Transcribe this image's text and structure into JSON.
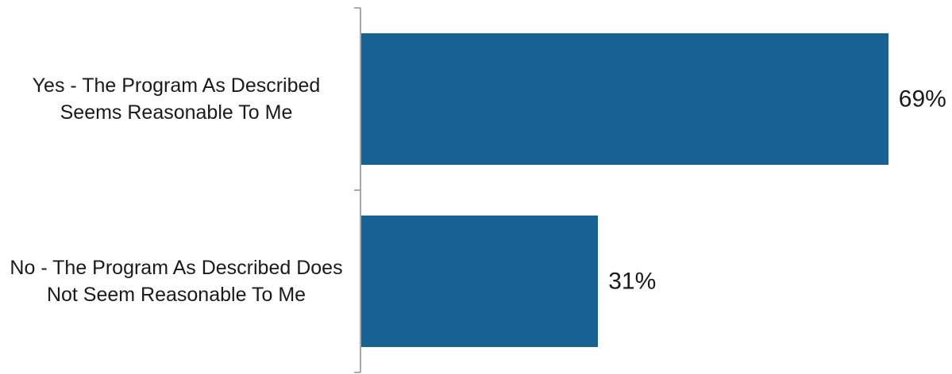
{
  "chart_data": {
    "type": "bar",
    "orientation": "horizontal",
    "categories": [
      "Yes - The Program As Described Seems Reasonable To Me",
      "No - The Program As Described Does Not Seem Reasonable To Me"
    ],
    "values": [
      69,
      31
    ],
    "value_labels": [
      "69%",
      "31%"
    ],
    "unit": "%",
    "xlim": [
      0,
      100
    ],
    "title": "",
    "xlabel": "",
    "ylabel": "",
    "grid": false,
    "legend": "none",
    "bar_color": "#156293",
    "axis_color": "#8c8c8c"
  }
}
